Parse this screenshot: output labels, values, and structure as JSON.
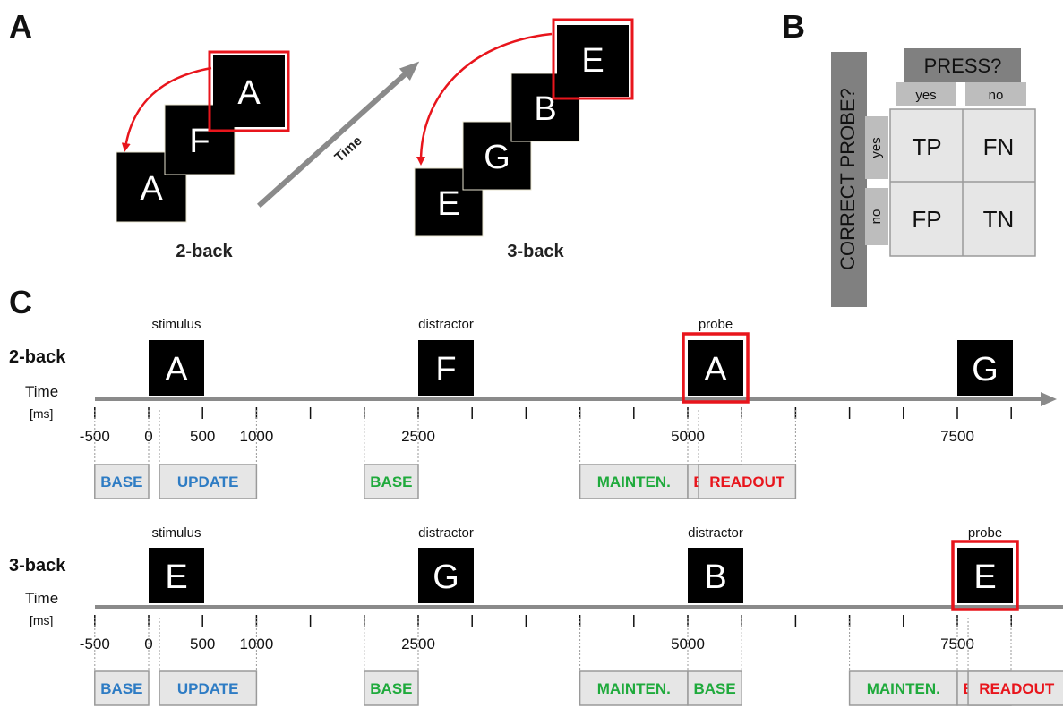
{
  "panels": {
    "a": "A",
    "b": "B",
    "c": "C"
  },
  "colors": {
    "blue": "#2e7cc4",
    "green": "#1faa3c",
    "red": "#e8151c",
    "axis": "#8a8a8a",
    "tile": "#000000",
    "box_fill": "#e6e6e6",
    "box_stroke": "#9a9a9a",
    "dark_header": "#808080",
    "light_header": "#bdbdbd"
  },
  "panel_a": {
    "time_label": "Time",
    "two_back": {
      "label": "2-back",
      "letters": [
        "A",
        "F",
        "A"
      ]
    },
    "three_back": {
      "label": "3-back",
      "letters": [
        "E",
        "G",
        "B",
        "E"
      ]
    }
  },
  "panel_b": {
    "col_header": "PRESS?",
    "row_header": "CORRECT PROBE?",
    "col_labels": [
      "yes",
      "no"
    ],
    "row_labels": [
      "yes",
      "no"
    ],
    "cells": [
      [
        "TP",
        "FN"
      ],
      [
        "FP",
        "TN"
      ]
    ]
  },
  "panel_c": {
    "axis_ms_range": [
      -500,
      8500
    ],
    "tick_step_ms": 500,
    "tick_labels": [
      {
        "ms": -500,
        "text": "-500"
      },
      {
        "ms": 0,
        "text": "0"
      },
      {
        "ms": 500,
        "text": "500"
      },
      {
        "ms": 1000,
        "text": "1000"
      },
      {
        "ms": 2500,
        "text": "2500"
      },
      {
        "ms": 5000,
        "text": "5000"
      },
      {
        "ms": 7500,
        "text": "7500"
      }
    ],
    "time_label": "Time",
    "unit_label": "[ms]",
    "rows": [
      {
        "label": "2-back",
        "stimuli": [
          {
            "ms": 0,
            "letter": "A",
            "caption": "stimulus",
            "highlight": false
          },
          {
            "ms": 2500,
            "letter": "F",
            "caption": "distractor",
            "highlight": false
          },
          {
            "ms": 5000,
            "letter": "A",
            "caption": "probe",
            "highlight": true
          },
          {
            "ms": 7500,
            "letter": "G",
            "caption": "",
            "highlight": false
          }
        ],
        "windows": [
          {
            "text": "BASE",
            "start_ms": -500,
            "end_ms": 0,
            "color": "blue"
          },
          {
            "text": "UPDATE",
            "start_ms": 100,
            "end_ms": 1000,
            "color": "blue"
          },
          {
            "text": "BASE",
            "start_ms": 2000,
            "end_ms": 2500,
            "color": "green"
          },
          {
            "text": "MAINTEN.",
            "start_ms": 4000,
            "end_ms": 5000,
            "color": "green"
          },
          {
            "text": "BASE",
            "start_ms": 5000,
            "end_ms": 5000,
            "color": "red"
          },
          {
            "text": "READOUT",
            "start_ms": 5100,
            "end_ms": 6000,
            "color": "red"
          }
        ]
      },
      {
        "label": "3-back",
        "stimuli": [
          {
            "ms": 0,
            "letter": "E",
            "caption": "stimulus",
            "highlight": false
          },
          {
            "ms": 2500,
            "letter": "G",
            "caption": "distractor",
            "highlight": false
          },
          {
            "ms": 5000,
            "letter": "B",
            "caption": "distractor",
            "highlight": false
          },
          {
            "ms": 7500,
            "letter": "E",
            "caption": "probe",
            "highlight": true
          }
        ],
        "windows": [
          {
            "text": "BASE",
            "start_ms": -500,
            "end_ms": 0,
            "color": "blue"
          },
          {
            "text": "UPDATE",
            "start_ms": 100,
            "end_ms": 1000,
            "color": "blue"
          },
          {
            "text": "BASE",
            "start_ms": 2000,
            "end_ms": 2500,
            "color": "green"
          },
          {
            "text": "MAINTEN.",
            "start_ms": 4000,
            "end_ms": 5000,
            "color": "green"
          },
          {
            "text": "BASE",
            "start_ms": 5000,
            "end_ms": 5500,
            "color": "green"
          },
          {
            "text": "MAINTEN.",
            "start_ms": 6500,
            "end_ms": 7500,
            "color": "green"
          },
          {
            "text": "BASE",
            "start_ms": 7500,
            "end_ms": 7500,
            "color": "red"
          },
          {
            "text": "READOUT",
            "start_ms": 7600,
            "end_ms": 8500,
            "color": "red"
          }
        ]
      }
    ]
  }
}
